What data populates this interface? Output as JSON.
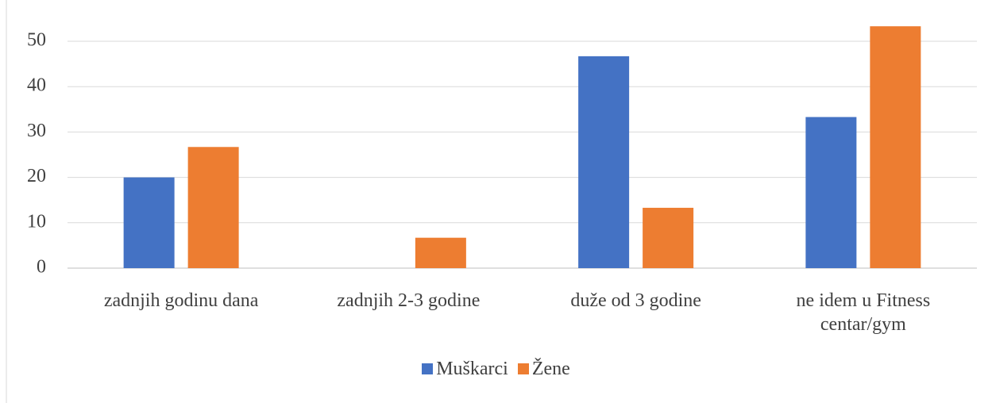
{
  "chart_data": {
    "type": "bar",
    "categories": [
      "zadnjih godinu dana",
      "zadnjih 2-3 godine",
      "duže od 3 godine",
      "ne idem u Fitness centar/gym"
    ],
    "series": [
      {
        "name": "Muškarci",
        "color": "#4472c4",
        "values": [
          20,
          0,
          46.7,
          33.3
        ]
      },
      {
        "name": "Žene",
        "color": "#ed7d31",
        "values": [
          26.7,
          6.7,
          13.3,
          53.3
        ]
      }
    ],
    "ylim": [
      0,
      55
    ],
    "yticks": [
      0,
      10,
      20,
      30,
      40,
      50
    ],
    "grid": true,
    "legend": "bottom"
  }
}
